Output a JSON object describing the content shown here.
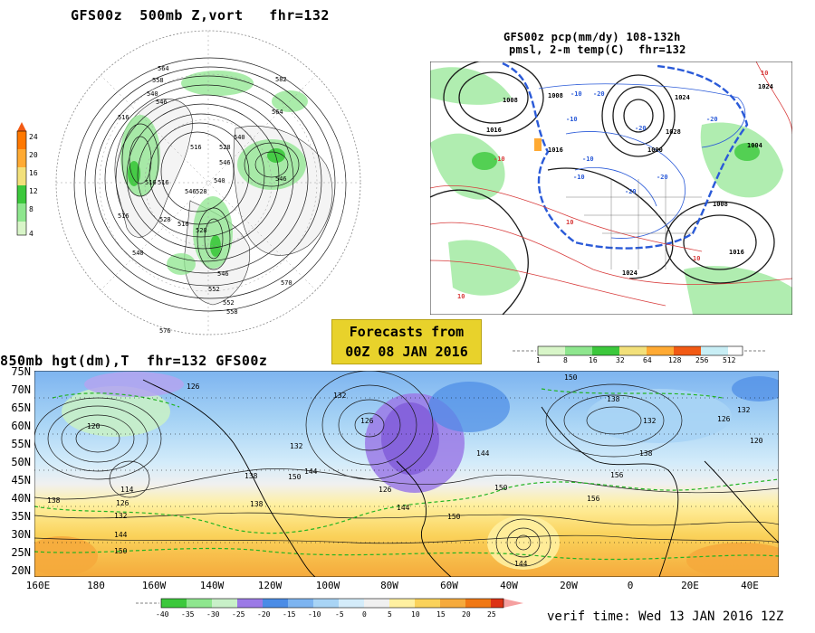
{
  "panel_topleft": {
    "title": "GFS00z  500mb Z,vort   fhr=132",
    "colorbar_labels": [
      "24",
      "20",
      "16",
      "12",
      "8",
      "4"
    ],
    "colorbar_colors": [
      "#ff7800",
      "#ffaa33",
      "#f2e07a",
      "#3cc83c",
      "#8ee68e",
      "#d8f5c8"
    ],
    "contour_labels": [
      "564",
      "558",
      "540",
      "546",
      "516",
      "540",
      "528",
      "516",
      "516",
      "546",
      "516",
      "540",
      "516",
      "546",
      "528",
      "528",
      "540",
      "528",
      "546",
      "552",
      "570",
      "552",
      "558",
      "576",
      "516",
      "582",
      "546",
      "564"
    ]
  },
  "panel_topright": {
    "title_line1": "GFS00z pcp(mm/dy) 108-132h",
    "title_line2": "pmsl, 2-m temp(C)  fhr=132",
    "colorbar_labels": [
      "1",
      "8",
      "16",
      "32",
      "64",
      "128",
      "256",
      "512"
    ],
    "colorbar_colors": [
      "#d8f5c8",
      "#8ee68e",
      "#3cc83c",
      "#f2e07a",
      "#ffaa33",
      "#f25a14",
      "#c8eef5",
      "#ffffff"
    ],
    "contour_labels": [
      "-10",
      "-10",
      "-10",
      "-20",
      "-10",
      "-20",
      "-20",
      "-20",
      "1024",
      "1008",
      "1008",
      "1016",
      "1024",
      "1024",
      "1016",
      "1008",
      "1028",
      "1016",
      "10",
      "10",
      "10",
      "-10",
      "-20",
      "10",
      "1004",
      "1000"
    ]
  },
  "forecast_note": {
    "line1": "Forecasts from",
    "line2": "00Z 08 JAN 2016"
  },
  "panel_bottom": {
    "title": "850mb hgt(dm),T  fhr=132 GFS00z",
    "lat_labels": [
      "75N",
      "70N",
      "65N",
      "60N",
      "55N",
      "50N",
      "45N",
      "40N",
      "35N",
      "30N",
      "25N",
      "20N"
    ],
    "lon_labels": [
      "160E",
      "180",
      "160W",
      "140W",
      "120W",
      "100W",
      "80W",
      "60W",
      "40W",
      "20W",
      "0",
      "20E",
      "40E"
    ],
    "contour_labels": [
      "126",
      "120",
      "114",
      "126",
      "132",
      "138",
      "144",
      "150",
      "132",
      "126",
      "132",
      "138",
      "144",
      "150",
      "156",
      "144",
      "132",
      "138",
      "150",
      "126",
      "132",
      "126",
      "120",
      "138",
      "144",
      "150",
      "156",
      "150",
      "138",
      "144"
    ],
    "colorbar_labels": [
      "-40",
      "-35",
      "-30",
      "-25",
      "-20",
      "-15",
      "-10",
      "-5",
      "0",
      "5",
      "10",
      "15",
      "20",
      "25"
    ],
    "colorbar_colors": [
      "#3cc83c",
      "#8ee68e",
      "#c8f0c8",
      "#9b7ae6",
      "#4b8ce6",
      "#7db4f0",
      "#a8d4f5",
      "#d4ecfa",
      "#f0f0f0",
      "#fff0a0",
      "#fad25a",
      "#f5aa3c",
      "#f07814",
      "#dc3214"
    ]
  },
  "verif_time": "verif time: Wed 13 JAN 2016 12Z",
  "colors": {
    "land": "#f2f2f2",
    "contour": "#1a1a1a",
    "precip_green": "#8ee68e",
    "temp_blue": "#2a5ad8",
    "temp_red": "#d83c3c",
    "note_bg": "#e8d22b"
  }
}
